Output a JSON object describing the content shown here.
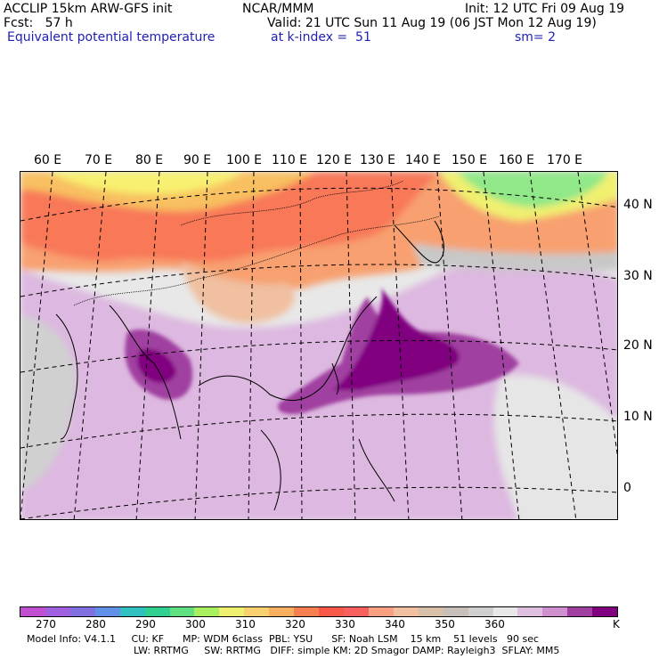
{
  "header": {
    "left1": "ACCLIP 15km ARW-GFS init",
    "center1": "NCAR/MMM",
    "right1": "Init: 12 UTC Fri 09 Aug 19",
    "left2": "Fcst:   57 h",
    "right2": "Valid: 21 UTC Sun 11 Aug 19 (06 JST Mon 12 Aug 19)",
    "field": "Equivalent potential temperature",
    "level": "at k-index =  51",
    "smooth": "sm= 2"
  },
  "map": {
    "lon_labels": [
      "60 E",
      "70 E",
      "80 E",
      "90 E",
      "100 E",
      "110 E",
      "120 E",
      "130 E",
      "140 E",
      "150 E",
      "160 E",
      "170 E"
    ],
    "lat_labels": [
      "40 N",
      "30 N",
      "20 N",
      "10 N",
      "0"
    ]
  },
  "colorbar": {
    "colors": [
      "#c050d0",
      "#a060e0",
      "#8070e0",
      "#6090e8",
      "#30c0c0",
      "#30d090",
      "#60e080",
      "#a8f060",
      "#f0f070",
      "#f8d070",
      "#f8b060",
      "#f88050",
      "#f85848",
      "#f86060",
      "#f8a080",
      "#f0c0a0",
      "#d8c0a8",
      "#c8c0b8",
      "#d0d0d0",
      "#e8e8e8",
      "#e0c0e0",
      "#d090d0",
      "#a040a0",
      "#800080"
    ],
    "labels": [
      "270",
      "280",
      "290",
      "300",
      "310",
      "320",
      "330",
      "340",
      "350",
      "360",
      "K"
    ]
  },
  "footer": {
    "line1": "Model Info: V4.1.1     CU: KF      MP: WDM 6class  PBL: YSU      SF: Noah LSM    15 km    51 levels   90 sec",
    "line2": "LW: RRTMG     SW: RRTMG   DIFF: simple KM: 2D Smagor DAMP: Rayleigh3  SFLAY: MM5"
  }
}
